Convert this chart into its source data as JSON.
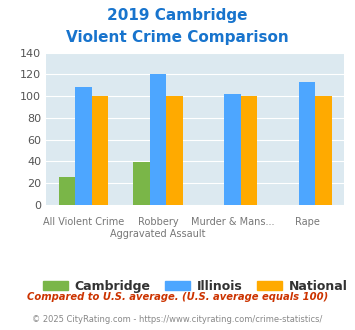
{
  "title_line1": "2019 Cambridge",
  "title_line2": "Violent Crime Comparison",
  "title_color": "#1874cd",
  "x_top_labels": [
    "",
    "Robbery",
    "Murder & Mans...",
    ""
  ],
  "x_bottom_labels": [
    "All Violent Crime",
    "Aggravated Assault",
    "",
    "Rape"
  ],
  "cambridge_values": [
    25,
    39,
    0,
    0
  ],
  "illinois_values": [
    108,
    120,
    102,
    113
  ],
  "national_values": [
    100,
    100,
    100,
    100
  ],
  "cambridge_color": "#7ab648",
  "illinois_color": "#4da6ff",
  "national_color": "#ffaa00",
  "ylim": [
    0,
    140
  ],
  "yticks": [
    0,
    20,
    40,
    60,
    80,
    100,
    120,
    140
  ],
  "plot_bg_color": "#dce9f0",
  "fig_bg_color": "#ffffff",
  "legend_labels": [
    "Cambridge",
    "Illinois",
    "National"
  ],
  "footnote1": "Compared to U.S. average. (U.S. average equals 100)",
  "footnote2": "© 2025 CityRating.com - https://www.cityrating.com/crime-statistics/",
  "footnote1_color": "#cc3300",
  "footnote2_color": "#888888"
}
